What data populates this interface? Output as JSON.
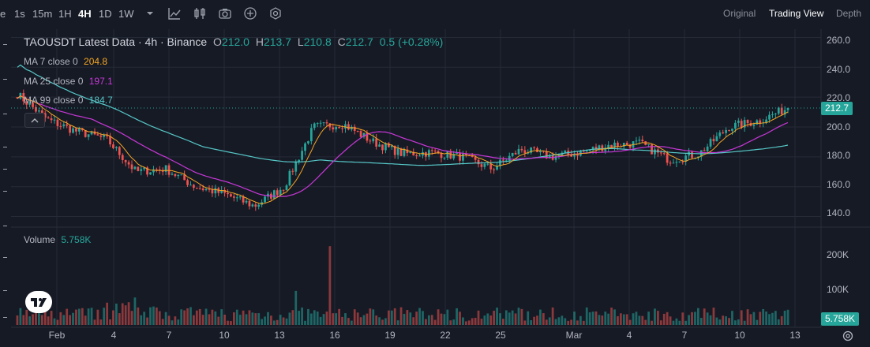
{
  "toolbar": {
    "timeframes": [
      "e",
      "1s",
      "15m",
      "1H",
      "4H",
      "1D",
      "1W"
    ],
    "active_timeframe": "4H",
    "icons": [
      "chevron-down-icon",
      "indicators-icon",
      "chart-type-icon",
      "screenshot-icon",
      "add-icon",
      "settings-icon"
    ],
    "views": [
      "Original",
      "Trading View",
      "Depth"
    ],
    "active_view": "Trading View"
  },
  "legend": {
    "title": "TAOUSDT Latest Data · 4h · Binance",
    "open_label": "O",
    "open": "212.0",
    "high_label": "H",
    "high": "213.7",
    "low_label": "L",
    "low": "210.8",
    "close_label": "C",
    "close": "212.7",
    "change": "0.5 (+0.28%)",
    "ma7_label": "MA 7 close 0",
    "ma7_value": "204.8",
    "ma25_label": "MA 25 close 0",
    "ma25_value": "197.1",
    "ma99_label": "MA 99 close 0",
    "ma99_value": "184.7",
    "volume_label": "Volume",
    "volume_value": "5.758K"
  },
  "price_axis": [
    "260.0",
    "240.0",
    "220.0",
    "200.0",
    "180.0",
    "160.0",
    "140.0"
  ],
  "volume_axis": [
    "200K",
    "100K"
  ],
  "last_price_tag": "212.7",
  "last_volume_tag": "5.758K",
  "x_axis": [
    "Feb",
    "4",
    "7",
    "10",
    "13",
    "16",
    "19",
    "22",
    "25",
    "Mar",
    "4",
    "7",
    "10",
    "13"
  ],
  "colors": {
    "up": "#26a69a",
    "down": "#ef5350",
    "ma7": "#f5a623",
    "ma25": "#c837d8",
    "ma99": "#56c8c8",
    "bg": "#161a25",
    "grid": "#252a37"
  },
  "chart_data": {
    "type": "candlestick",
    "series": [
      {
        "name": "MA 7 close 0",
        "last": 204.8
      },
      {
        "name": "MA 25 close 0",
        "last": 197.1
      },
      {
        "name": "MA 99 close 0",
        "last": 184.7
      }
    ],
    "close_path": [
      [
        "Feb",
        222
      ],
      [
        "Feb",
        205
      ],
      [
        "4",
        197
      ],
      [
        "4",
        192
      ],
      [
        "7",
        170
      ],
      [
        "7",
        172
      ],
      [
        "10",
        160
      ],
      [
        "10",
        155
      ],
      [
        "13",
        147
      ],
      [
        "13",
        160
      ],
      [
        "16",
        200
      ],
      [
        "16",
        202
      ],
      [
        "19",
        190
      ],
      [
        "19",
        182
      ],
      [
        "22",
        183
      ],
      [
        "22",
        180
      ],
      [
        "25",
        172
      ],
      [
        "25",
        185
      ],
      [
        "Mar",
        180
      ],
      [
        "Mar",
        183
      ],
      [
        "4",
        188
      ],
      [
        "4",
        189
      ],
      [
        "7",
        178
      ],
      [
        "7",
        182
      ],
      [
        "10",
        200
      ],
      [
        "10",
        204
      ],
      [
        "13",
        212.7
      ]
    ],
    "ylim": [
      135,
      265
    ],
    "volume_ylim": [
      0,
      260000
    ]
  }
}
